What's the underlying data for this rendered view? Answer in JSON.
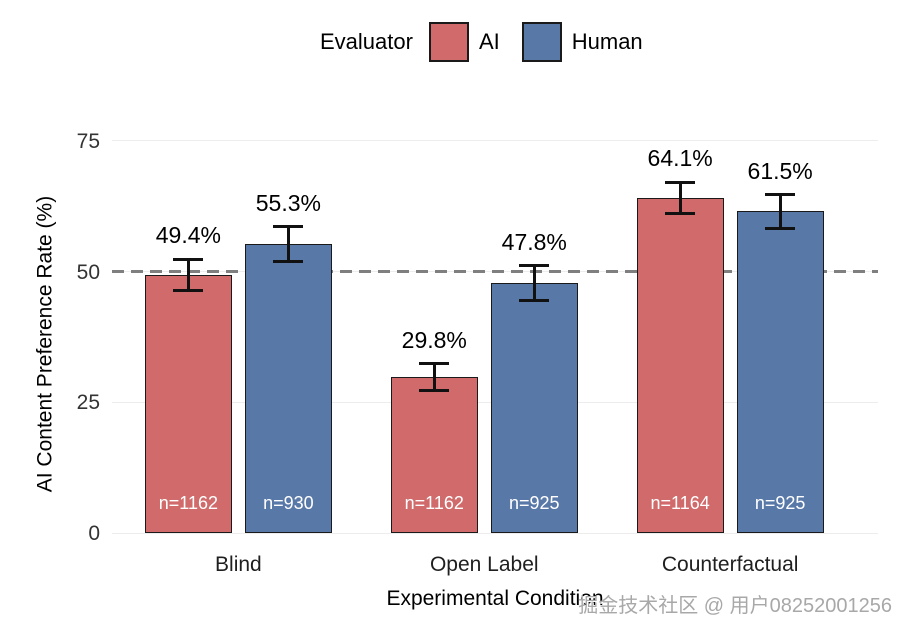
{
  "legend": {
    "title": "Evaluator",
    "items": [
      {
        "label": "AI",
        "color": "#D16B6B"
      },
      {
        "label": "Human",
        "color": "#5878A8"
      }
    ]
  },
  "chart_data": {
    "type": "bar",
    "title": "",
    "categories": [
      "Blind",
      "Open Label",
      "Counterfactual"
    ],
    "series": [
      {
        "name": "AI",
        "color": "#D16B6B",
        "values": [
          49.4,
          29.8,
          64.1
        ],
        "value_labels": [
          "49.4%",
          "29.8%",
          "64.1%"
        ],
        "n_labels": [
          "n=1162",
          "n=1162",
          "n=1164"
        ],
        "error_low": [
          46.4,
          27.2,
          61.1
        ],
        "error_high": [
          52.4,
          32.4,
          67.1
        ]
      },
      {
        "name": "Human",
        "color": "#5878A8",
        "values": [
          55.3,
          47.8,
          61.5
        ],
        "value_labels": [
          "55.3%",
          "47.8%",
          "61.5%"
        ],
        "n_labels": [
          "n=930",
          "n=925",
          "n=925"
        ],
        "error_low": [
          52.0,
          44.5,
          58.3
        ],
        "error_high": [
          58.6,
          51.1,
          64.7
        ]
      }
    ],
    "xlabel": "Experimental Condition",
    "ylabel": "AI Content Preference Rate (%)",
    "yticks": [
      0,
      25,
      50,
      75
    ],
    "ylim": [
      0,
      83
    ],
    "grid": "horizontal-light",
    "legend_position": "top",
    "reference_line": {
      "value": 50,
      "style": "dashed",
      "color": "#7f7f7f"
    }
  },
  "watermark": "掘金技术社区 @ 用户08252001256"
}
